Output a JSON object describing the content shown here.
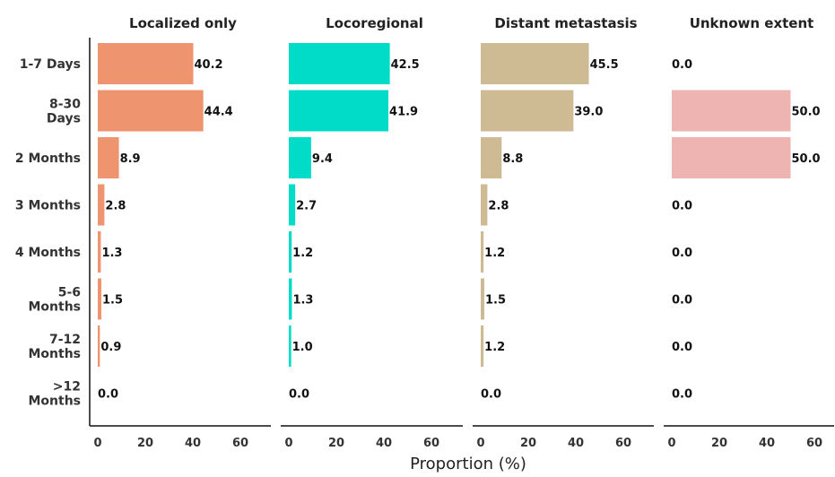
{
  "chart_data": {
    "type": "bar",
    "orientation": "horizontal",
    "xlabel": "Proportion (%)",
    "xlim": [
      0,
      60
    ],
    "xticks": [
      "0",
      "20",
      "40",
      "60"
    ],
    "categories": [
      "1-7 Days",
      "8-30 Days",
      "2 Months",
      "3 Months",
      "4 Months",
      "5-6 Months",
      "7-12 Months",
      ">12 Months"
    ],
    "category_lines": [
      [
        "1-7 Days"
      ],
      [
        "8-30",
        "Days"
      ],
      [
        "2 Months"
      ],
      [
        "3 Months"
      ],
      [
        "4 Months"
      ],
      [
        "5-6",
        "Months"
      ],
      [
        "7-12",
        "Months"
      ],
      [
        ">12",
        "Months"
      ]
    ],
    "series": [
      {
        "name": "Localized only",
        "color": "#EE9570",
        "values": [
          40.2,
          44.4,
          8.9,
          2.8,
          1.3,
          1.5,
          0.9,
          0.0
        ],
        "labels": [
          "40.2",
          "44.4",
          "8.9",
          "2.8",
          "1.3",
          "1.5",
          "0.9",
          "0.0"
        ]
      },
      {
        "name": "Locoregional",
        "color": "#00DCC8",
        "values": [
          42.5,
          41.9,
          9.4,
          2.7,
          1.2,
          1.3,
          1.0,
          0.0
        ],
        "labels": [
          "42.5",
          "41.9",
          "9.4",
          "2.7",
          "1.2",
          "1.3",
          "1.0",
          "0.0"
        ]
      },
      {
        "name": "Distant metastasis",
        "color": "#CEBB94",
        "values": [
          45.5,
          39.0,
          8.8,
          2.8,
          1.2,
          1.5,
          1.2,
          0.0
        ],
        "labels": [
          "45.5",
          "39.0",
          "8.8",
          "2.8",
          "1.2",
          "1.5",
          "1.2",
          "0.0"
        ]
      },
      {
        "name": "Unknown extent",
        "color": "#EEB4B2",
        "values": [
          0.0,
          50.0,
          50.0,
          0.0,
          0.0,
          0.0,
          0.0,
          0.0
        ],
        "labels": [
          "0.0",
          "50.0",
          "50.0",
          "0.0",
          "0.0",
          "0.0",
          "0.0",
          "0.0"
        ]
      }
    ],
    "grid": false,
    "legend": "none"
  }
}
